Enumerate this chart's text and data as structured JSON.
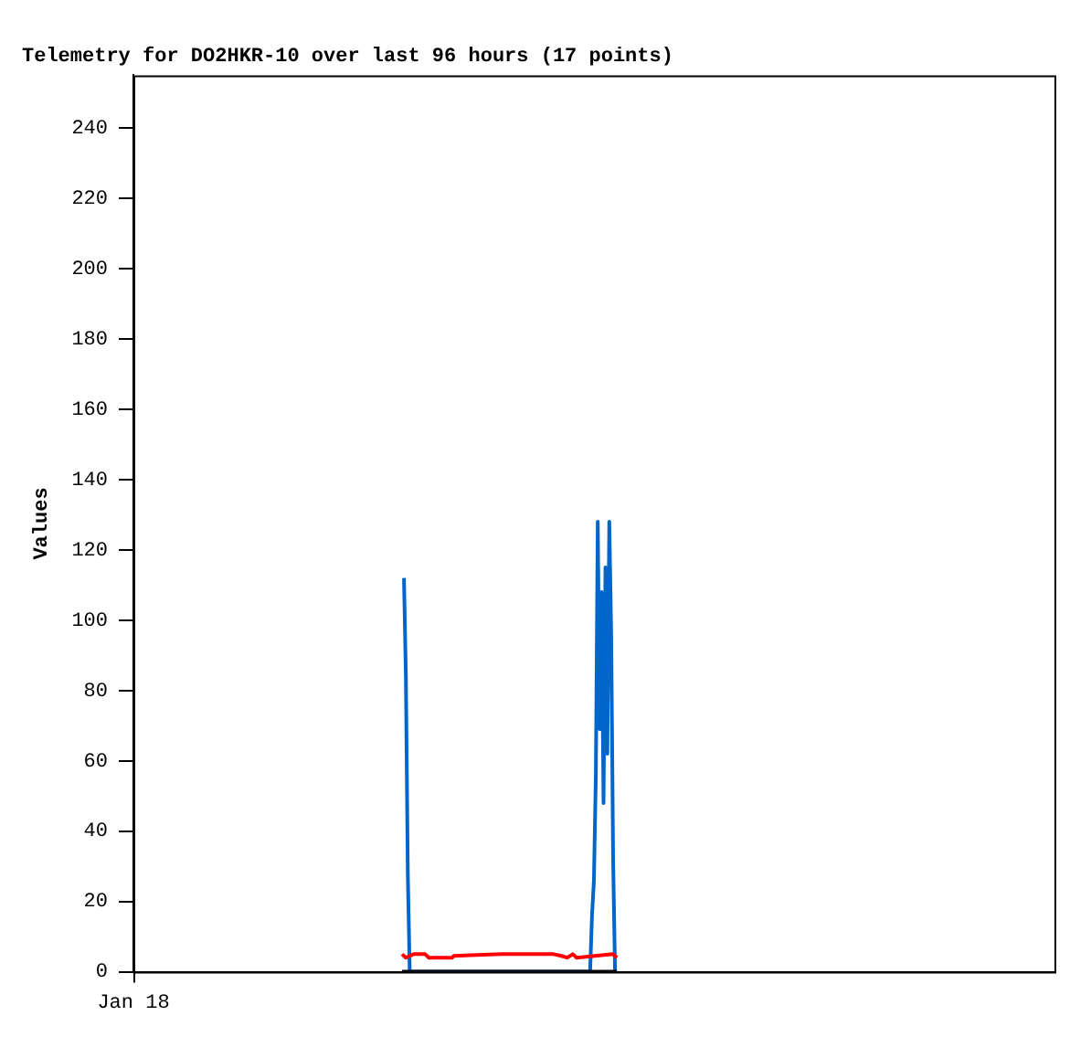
{
  "chart_data": {
    "type": "line",
    "title": "Telemetry for DO2HKR-10 over last 96 hours (17 points)",
    "ylabel": "Values",
    "categories": [
      "Jan 18",
      null,
      null,
      null,
      null,
      null,
      null,
      null,
      null,
      null,
      null,
      null,
      null,
      null,
      null,
      null,
      null,
      null,
      null,
      null,
      null,
      null,
      null,
      null,
      null,
      null,
      null,
      null,
      null,
      null,
      null,
      null,
      null,
      null,
      null,
      null,
      null,
      null,
      null,
      null,
      null,
      null,
      null,
      null,
      null,
      null,
      null,
      null,
      null,
      null,
      null,
      null,
      null,
      null,
      null,
      null,
      null,
      null,
      null,
      null,
      null,
      null,
      null,
      null,
      null,
      null,
      null,
      null,
      null,
      null,
      null,
      null,
      null,
      null,
      null,
      null,
      null,
      null,
      null,
      null,
      null,
      null,
      null,
      null,
      null,
      null,
      null,
      null,
      null,
      null,
      null,
      null,
      null,
      null,
      null,
      null,
      null,
      null,
      null,
      null,
      null,
      null,
      null,
      null,
      null,
      null,
      null,
      null,
      null,
      null,
      null,
      null,
      null,
      null,
      null,
      null,
      null,
      null,
      null,
      null,
      null,
      null,
      null,
      null,
      null,
      null,
      null,
      null,
      null,
      null,
      null,
      null,
      null,
      null,
      null,
      null,
      null,
      null,
      null,
      null,
      null,
      null,
      null,
      null,
      null,
      null,
      null,
      null,
      null,
      null,
      null,
      null,
      null,
      null,
      null,
      null,
      null,
      null,
      null,
      null,
      null,
      null,
      null,
      null,
      null,
      null,
      null,
      null,
      null,
      null,
      null,
      null,
      null,
      null,
      null,
      null,
      null,
      null,
      null,
      null,
      null,
      null,
      null,
      null,
      null,
      null,
      null,
      null,
      null,
      null,
      null,
      null,
      null,
      null,
      null,
      null,
      null,
      null,
      null,
      null,
      null,
      null,
      null,
      null,
      null,
      null,
      null,
      null,
      null,
      null,
      null,
      null,
      null,
      null,
      null,
      null,
      null,
      null,
      null,
      null,
      null,
      null,
      null,
      null,
      null,
      null,
      null,
      null,
      null,
      null,
      null,
      null,
      null,
      null,
      null,
      null,
      null,
      null,
      null,
      null,
      null,
      null,
      null,
      null,
      null,
      null,
      null,
      null,
      null,
      null,
      null,
      null,
      null,
      null,
      null,
      null,
      null,
      null,
      null,
      null,
      null,
      null,
      null,
      null,
      null,
      null,
      null,
      null,
      null,
      null,
      null,
      null,
      null,
      null,
      null,
      null,
      null,
      null,
      null,
      null,
      null,
      null,
      null,
      null,
      null,
      null,
      null,
      null,
      null,
      null,
      null,
      null,
      null,
      null,
      null,
      null,
      null,
      null,
      null,
      null,
      null,
      null,
      null,
      null,
      null,
      null,
      null,
      null,
      null,
      null,
      null,
      null,
      null,
      null,
      null,
      null,
      null,
      null,
      null,
      null,
      null,
      null,
      null,
      null,
      null,
      null,
      null,
      null,
      null,
      null,
      null,
      null,
      null,
      null,
      null,
      null,
      null,
      null,
      null,
      null,
      null,
      null,
      null,
      null,
      null,
      null,
      null,
      null,
      null,
      null,
      null,
      null,
      null,
      null,
      null,
      null,
      null,
      null,
      null,
      null,
      null,
      null,
      null,
      null,
      null,
      null,
      null,
      null,
      null,
      null,
      null,
      null,
      null,
      null,
      null,
      null,
      null,
      null,
      null,
      null,
      null,
      null,
      null,
      null,
      null,
      null,
      null,
      null,
      null,
      null,
      null,
      null,
      null,
      null,
      null,
      null,
      null,
      null,
      null,
      null,
      null,
      null,
      null,
      null,
      null,
      null,
      null,
      null,
      null,
      null,
      null,
      null,
      null,
      null,
      null,
      null,
      null,
      null,
      null,
      null,
      null,
      null,
      null,
      null,
      null,
      null,
      null,
      null,
      null,
      null,
      null,
      null,
      null,
      null,
      null,
      null,
      null,
      null,
      null,
      null,
      null,
      null,
      null,
      null,
      null,
      null,
      null,
      null,
      null,
      null,
      null,
      null,
      null,
      null,
      null,
      null,
      null,
      null,
      null,
      null,
      null,
      null,
      null,
      null,
      null,
      null,
      null,
      null,
      null,
      null,
      null,
      null,
      null,
      null,
      null,
      null,
      null,
      null,
      null,
      null,
      null
    ],
    "ylim": [
      0,
      255
    ],
    "yticks": [
      0,
      20,
      40,
      60,
      80,
      100,
      120,
      140,
      160,
      180,
      200,
      220,
      240
    ],
    "grid": false,
    "legend": false,
    "series": [
      {
        "color": "#0066cc",
        "values": [
          null,
          null,
          null,
          null,
          null,
          null,
          null,
          null,
          null,
          null,
          null,
          null,
          null,
          null,
          null,
          null,
          null,
          null,
          null,
          null,
          null,
          null,
          null,
          null,
          null,
          null,
          null,
          null,
          null,
          null,
          null,
          null,
          null,
          null,
          null,
          null,
          null,
          null,
          null,
          null,
          null,
          null,
          null,
          null,
          null,
          null,
          null,
          null,
          null,
          null,
          null,
          null,
          null,
          null,
          null,
          null,
          null,
          null,
          null,
          null,
          null,
          null,
          null,
          null,
          null,
          null,
          null,
          null,
          null,
          null,
          null,
          null,
          null,
          null,
          null,
          null,
          null,
          null,
          null,
          null,
          null,
          null,
          null,
          null,
          null,
          null,
          null,
          null,
          null,
          null,
          null,
          null,
          null,
          null,
          null,
          null,
          null,
          null,
          null,
          null,
          null,
          null,
          null,
          null,
          null,
          null,
          null,
          null,
          null,
          null,
          null,
          null,
          null,
          null,
          null,
          null,
          null,
          null,
          null,
          null,
          null,
          null,
          null,
          null,
          null,
          null,
          null,
          null,
          null,
          null,
          null,
          null,
          null,
          null,
          null,
          null,
          null,
          null,
          null,
          null,
          null,
          112,
          84,
          28,
          0,
          null,
          null,
          null,
          null,
          null,
          null,
          null,
          null,
          null,
          null,
          null,
          null,
          null,
          null,
          null,
          null,
          null,
          null,
          null,
          null,
          null,
          null,
          null,
          null,
          null,
          null,
          null,
          null,
          null,
          null,
          null,
          null,
          null,
          null,
          null,
          null,
          null,
          null,
          null,
          null,
          null,
          null,
          null,
          null,
          null,
          null,
          null,
          null,
          null,
          null,
          null,
          null,
          null,
          null,
          null,
          null,
          null,
          null,
          null,
          null,
          null,
          null,
          null,
          null,
          null,
          null,
          null,
          null,
          null,
          null,
          null,
          null,
          null,
          null,
          null,
          null,
          null,
          null,
          null,
          null,
          null,
          null,
          null,
          null,
          null,
          null,
          null,
          null,
          null,
          null,
          null,
          null,
          null,
          0,
          16,
          26,
          56,
          128,
          69,
          108,
          48,
          115,
          62,
          128,
          96,
          32,
          0,
          null,
          null,
          null,
          null,
          null,
          null,
          null,
          null,
          null,
          null,
          null,
          null,
          null,
          null,
          null,
          null,
          null,
          null,
          null,
          null,
          null,
          null,
          null,
          null,
          null,
          null,
          null,
          null,
          null,
          null,
          null,
          null,
          null,
          null,
          null,
          null,
          null,
          null,
          null,
          null,
          null,
          null,
          null,
          null,
          null,
          null,
          null,
          null,
          null,
          null,
          null,
          null,
          null,
          null,
          null,
          null,
          null,
          null,
          null,
          null,
          null,
          null,
          null,
          null,
          null,
          null,
          null,
          null,
          null,
          null,
          null,
          null,
          null,
          null,
          null,
          null,
          null,
          null,
          null,
          null,
          null,
          null,
          null,
          null,
          null,
          null,
          null,
          null,
          null,
          null,
          null,
          null,
          null,
          null,
          null,
          null,
          null,
          null,
          null,
          null,
          null,
          null,
          null,
          null,
          null,
          null,
          null,
          null,
          null,
          null,
          null,
          null,
          null,
          null,
          null,
          null,
          null,
          null,
          null,
          null,
          null,
          null,
          null,
          null,
          null,
          null,
          null,
          null,
          null,
          null,
          null,
          null,
          null,
          null,
          null,
          null,
          null,
          null,
          null,
          null,
          null,
          null,
          null,
          null,
          null,
          null,
          null,
          null,
          null,
          null,
          null,
          null,
          null,
          null,
          null,
          null,
          null,
          null,
          null,
          null,
          null,
          null,
          null,
          null,
          null,
          null,
          null,
          null,
          null,
          null,
          null,
          null,
          null,
          null,
          null,
          null,
          null,
          null,
          null,
          null,
          null,
          null,
          null,
          null,
          null,
          null,
          null,
          null,
          null,
          null,
          null,
          null,
          null,
          null,
          null,
          null,
          null,
          null,
          null,
          null,
          null,
          null,
          null,
          null,
          null,
          null,
          null,
          null,
          null,
          null,
          null,
          null,
          null,
          null,
          null,
          null,
          null,
          null,
          null,
          null,
          null,
          null,
          null,
          null,
          null,
          null,
          null,
          null,
          null
        ]
      },
      {
        "color": "#ff0000",
        "values": [
          null,
          null,
          null,
          null,
          null,
          null,
          null,
          null,
          null,
          null,
          null,
          null,
          null,
          null,
          null,
          null,
          null,
          null,
          null,
          null,
          null,
          null,
          null,
          null,
          null,
          null,
          null,
          null,
          null,
          null,
          null,
          null,
          null,
          null,
          null,
          null,
          null,
          null,
          null,
          null,
          null,
          null,
          null,
          null,
          null,
          null,
          null,
          null,
          null,
          null,
          null,
          null,
          null,
          null,
          null,
          null,
          null,
          null,
          null,
          null,
          null,
          null,
          null,
          null,
          null,
          null,
          null,
          null,
          null,
          null,
          null,
          null,
          null,
          null,
          null,
          null,
          null,
          null,
          null,
          null,
          null,
          null,
          null,
          null,
          null,
          null,
          null,
          null,
          null,
          null,
          null,
          null,
          null,
          null,
          null,
          null,
          null,
          null,
          null,
          null,
          null,
          null,
          null,
          null,
          null,
          null,
          null,
          null,
          null,
          null,
          null,
          null,
          null,
          null,
          null,
          null,
          null,
          null,
          null,
          null,
          null,
          null,
          null,
          null,
          null,
          null,
          null,
          null,
          null,
          null,
          null,
          null,
          null,
          null,
          null,
          null,
          null,
          null,
          null,
          null,
          5,
          null,
          4,
          null,
          null,
          null,
          5,
          null,
          null,
          null,
          null,
          null,
          5,
          null,
          4,
          null,
          null,
          null,
          null,
          null,
          null,
          null,
          null,
          null,
          null,
          null,
          4,
          4.5,
          null,
          null,
          null,
          null,
          null,
          null,
          null,
          null,
          null,
          null,
          null,
          null,
          null,
          null,
          null,
          null,
          null,
          null,
          null,
          null,
          null,
          null,
          null,
          null,
          5,
          null,
          null,
          null,
          null,
          null,
          null,
          null,
          null,
          null,
          null,
          null,
          null,
          null,
          null,
          null,
          null,
          null,
          null,
          null,
          null,
          null,
          null,
          null,
          null,
          null,
          null,
          5,
          null,
          null,
          null,
          4.5,
          null,
          null,
          4,
          null,
          null,
          5,
          null,
          4,
          null,
          null,
          null,
          null,
          null,
          null,
          null,
          null,
          null,
          null,
          null,
          null,
          null,
          null,
          null,
          null,
          null,
          null,
          5,
          null,
          4,
          null,
          null,
          null,
          null,
          null,
          null,
          null,
          null,
          null,
          null,
          null,
          null,
          null,
          null,
          null,
          null,
          null,
          null,
          null,
          null,
          null,
          null,
          null,
          null,
          null,
          null,
          null,
          null,
          null,
          null,
          null,
          null,
          null,
          null,
          null,
          null,
          null,
          null,
          null,
          null,
          null,
          null,
          null,
          null,
          null,
          null,
          null,
          null,
          null,
          null,
          null,
          null,
          null,
          null,
          null,
          null,
          null,
          null,
          null,
          null,
          null,
          null,
          null,
          null,
          null,
          null,
          null,
          null,
          null,
          null,
          null,
          null,
          null,
          null,
          null,
          null,
          null,
          null,
          null,
          null,
          null,
          null,
          null,
          null,
          null,
          null,
          null,
          null,
          null,
          null,
          null,
          null,
          null,
          null,
          null,
          null,
          null,
          null,
          null,
          null,
          null,
          null,
          null,
          null,
          null,
          null,
          null,
          null,
          null,
          null,
          null,
          null,
          null,
          null,
          null,
          null,
          null,
          null,
          null,
          null,
          null,
          null,
          null,
          null,
          null,
          null,
          null,
          null,
          null,
          null,
          null,
          null,
          null,
          null,
          null,
          null,
          null,
          null,
          null,
          null,
          null,
          null,
          null,
          null,
          null,
          null,
          null,
          null,
          null,
          null,
          null,
          null,
          null,
          null,
          null,
          null,
          null,
          null,
          null,
          null,
          null,
          null,
          null,
          null,
          null,
          null,
          null,
          null,
          null,
          null,
          null,
          null,
          null,
          null,
          null,
          null,
          null,
          null,
          null,
          null,
          null,
          null,
          null,
          null,
          null,
          null,
          null,
          null,
          null,
          null,
          null,
          null,
          null,
          null,
          null,
          null,
          null,
          null,
          null,
          null,
          null,
          null,
          null,
          null,
          null,
          null,
          null,
          null,
          null,
          null,
          null,
          null,
          null,
          null,
          null,
          null,
          null,
          null,
          null,
          null,
          null,
          null,
          null,
          null,
          null,
          null,
          null,
          null
        ]
      },
      {
        "color": "#000000",
        "values": [
          null,
          null,
          null,
          null,
          null,
          null,
          null,
          null,
          null,
          null,
          null,
          null,
          null,
          null,
          null,
          null,
          null,
          null,
          null,
          null,
          null,
          null,
          null,
          null,
          null,
          null,
          null,
          null,
          null,
          null,
          null,
          null,
          null,
          null,
          null,
          null,
          null,
          null,
          null,
          null,
          null,
          null,
          null,
          null,
          null,
          null,
          null,
          null,
          null,
          null,
          null,
          null,
          null,
          null,
          null,
          null,
          null,
          null,
          null,
          null,
          null,
          null,
          null,
          null,
          null,
          null,
          null,
          null,
          null,
          null,
          null,
          null,
          null,
          null,
          null,
          null,
          null,
          null,
          null,
          null,
          null,
          null,
          null,
          null,
          null,
          null,
          null,
          null,
          null,
          null,
          null,
          null,
          null,
          null,
          null,
          null,
          null,
          null,
          null,
          null,
          null,
          null,
          null,
          null,
          null,
          null,
          null,
          null,
          null,
          null,
          null,
          null,
          null,
          null,
          null,
          null,
          null,
          null,
          null,
          null,
          null,
          null,
          null,
          null,
          null,
          null,
          null,
          null,
          null,
          null,
          null,
          null,
          null,
          null,
          null,
          null,
          null,
          null,
          null,
          null,
          0,
          null,
          null,
          null,
          null,
          null,
          null,
          null,
          null,
          null,
          null,
          null,
          null,
          null,
          null,
          null,
          null,
          null,
          null,
          null,
          null,
          null,
          null,
          null,
          null,
          null,
          null,
          null,
          null,
          null,
          null,
          null,
          null,
          null,
          null,
          null,
          null,
          null,
          null,
          null,
          null,
          null,
          null,
          null,
          null,
          null,
          null,
          null,
          null,
          null,
          null,
          null,
          null,
          null,
          null,
          null,
          null,
          null,
          null,
          null,
          null,
          null,
          null,
          null,
          null,
          null,
          null,
          null,
          null,
          null,
          null,
          null,
          null,
          null,
          null,
          null,
          null,
          null,
          null,
          null,
          null,
          null,
          null,
          null,
          null,
          null,
          null,
          null,
          null,
          null,
          null,
          null,
          null,
          null,
          null,
          null,
          null,
          null,
          null,
          null,
          null,
          null,
          null,
          null,
          null,
          null,
          null,
          null,
          null,
          null,
          null,
          null,
          0,
          null,
          null,
          null,
          null,
          null,
          null,
          null,
          null,
          null,
          null,
          null,
          null,
          null,
          null,
          null,
          null,
          null,
          null,
          null,
          null,
          null,
          null,
          null,
          null,
          null,
          null,
          null,
          null,
          null,
          null,
          null,
          null,
          null,
          null,
          null,
          null,
          null,
          null,
          null,
          null,
          null,
          null,
          null,
          null,
          null,
          null,
          null,
          null,
          null,
          null,
          null,
          null,
          null,
          null,
          null,
          null,
          null,
          null,
          null,
          null,
          null,
          null,
          null,
          null,
          null,
          null,
          null,
          null,
          null,
          null,
          null,
          null,
          null,
          null,
          null,
          null,
          null,
          null,
          null,
          null,
          null,
          null,
          null,
          null,
          null,
          null,
          null,
          null,
          null,
          null,
          null,
          null,
          null,
          null,
          null,
          null,
          null,
          null,
          null,
          null,
          null,
          null,
          null,
          null,
          null,
          null,
          null,
          null,
          null,
          null,
          null,
          null,
          null,
          null,
          null,
          null,
          null,
          null,
          null,
          null,
          null,
          null,
          null,
          null,
          null,
          null,
          null,
          null,
          null,
          null,
          null,
          null,
          null,
          null,
          null,
          null,
          null,
          null,
          null,
          null,
          null,
          null,
          null,
          null,
          null,
          null,
          null,
          null,
          null,
          null,
          null,
          null,
          null,
          null,
          null,
          null,
          null,
          null,
          null,
          null,
          null,
          null,
          null,
          null,
          null,
          null,
          null,
          null,
          null,
          null,
          null,
          null,
          null,
          null,
          null,
          null,
          null,
          null,
          null,
          null,
          null,
          null,
          null,
          null,
          null,
          null,
          null,
          null,
          null,
          null,
          null,
          null,
          null,
          null,
          null,
          null,
          null,
          null,
          null,
          null,
          null,
          null,
          null,
          null,
          null,
          null,
          null,
          null,
          null,
          null,
          null,
          null,
          null,
          null,
          null,
          null,
          null,
          null,
          null,
          null,
          null,
          null,
          null,
          null,
          null,
          null,
          null,
          null
        ]
      }
    ]
  }
}
